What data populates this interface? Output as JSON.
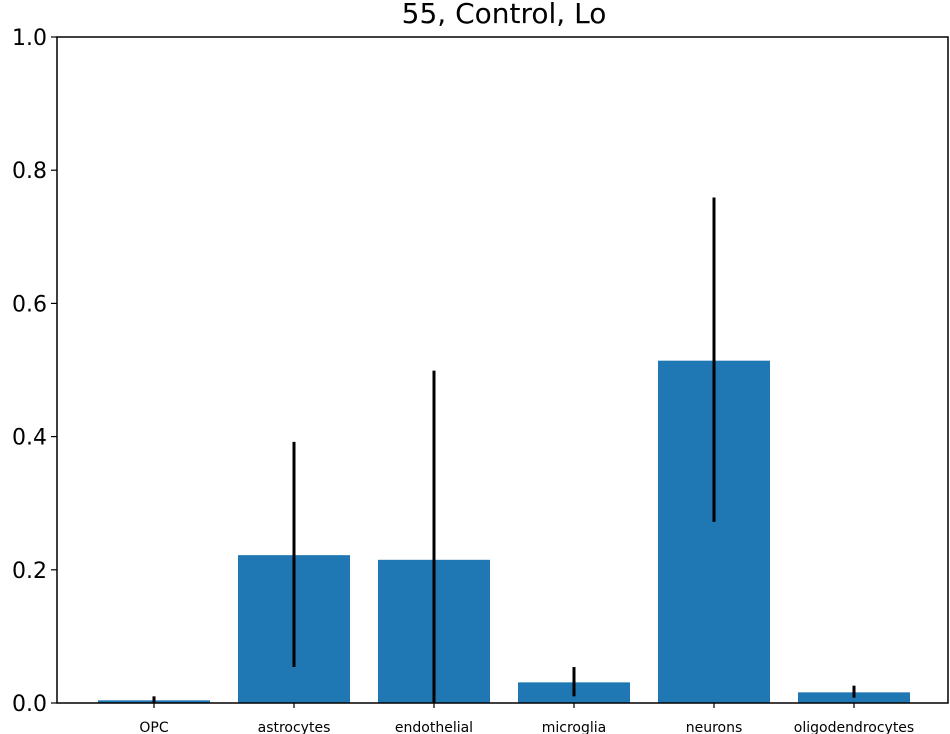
{
  "chart_data": {
    "type": "bar",
    "title": "55, Control, Lo",
    "xlabel": "",
    "ylabel": "",
    "categories": [
      "OPC",
      "astrocytes",
      "endothelial",
      "microglia",
      "neurons",
      "oligodendrocytes"
    ],
    "values": [
      0.004,
      0.222,
      0.215,
      0.031,
      0.514,
      0.016
    ],
    "error_low": [
      0.0,
      0.054,
      0.0,
      0.01,
      0.272,
      0.008
    ],
    "error_high": [
      0.01,
      0.392,
      0.499,
      0.054,
      0.759,
      0.026
    ],
    "ylim": [
      0,
      1.0
    ],
    "yticks": [
      "0.0",
      "0.2",
      "0.4",
      "0.6",
      "0.8",
      "1.0"
    ],
    "grid": false,
    "colors": {
      "bar": "#1f77b4",
      "error": "#000000"
    }
  }
}
